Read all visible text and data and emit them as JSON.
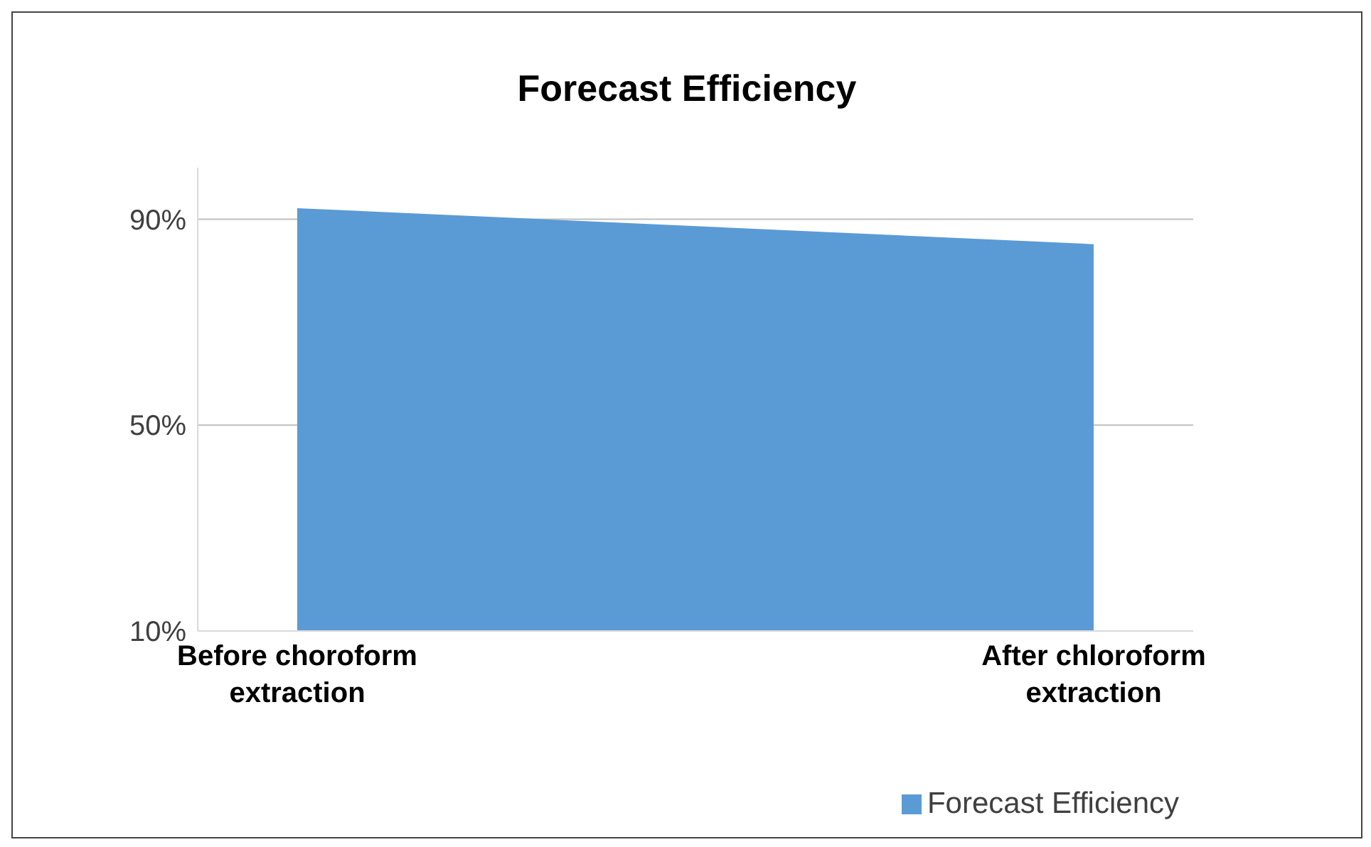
{
  "chart_data": {
    "type": "area",
    "title": "Forecast Efficiency",
    "categories": [
      "Before choroform extraction",
      "After chloroform extraction"
    ],
    "series": [
      {
        "name": "Forecast Efficiency",
        "color": "#5b9bd5",
        "values": [
          92,
          85
        ]
      }
    ],
    "ylim": [
      10,
      100
    ],
    "yticks": [
      {
        "value": 10,
        "label": "10%"
      },
      {
        "value": 50,
        "label": "50%"
      },
      {
        "value": 90,
        "label": "90%"
      }
    ],
    "grid": "y",
    "legend": "bottom right"
  }
}
